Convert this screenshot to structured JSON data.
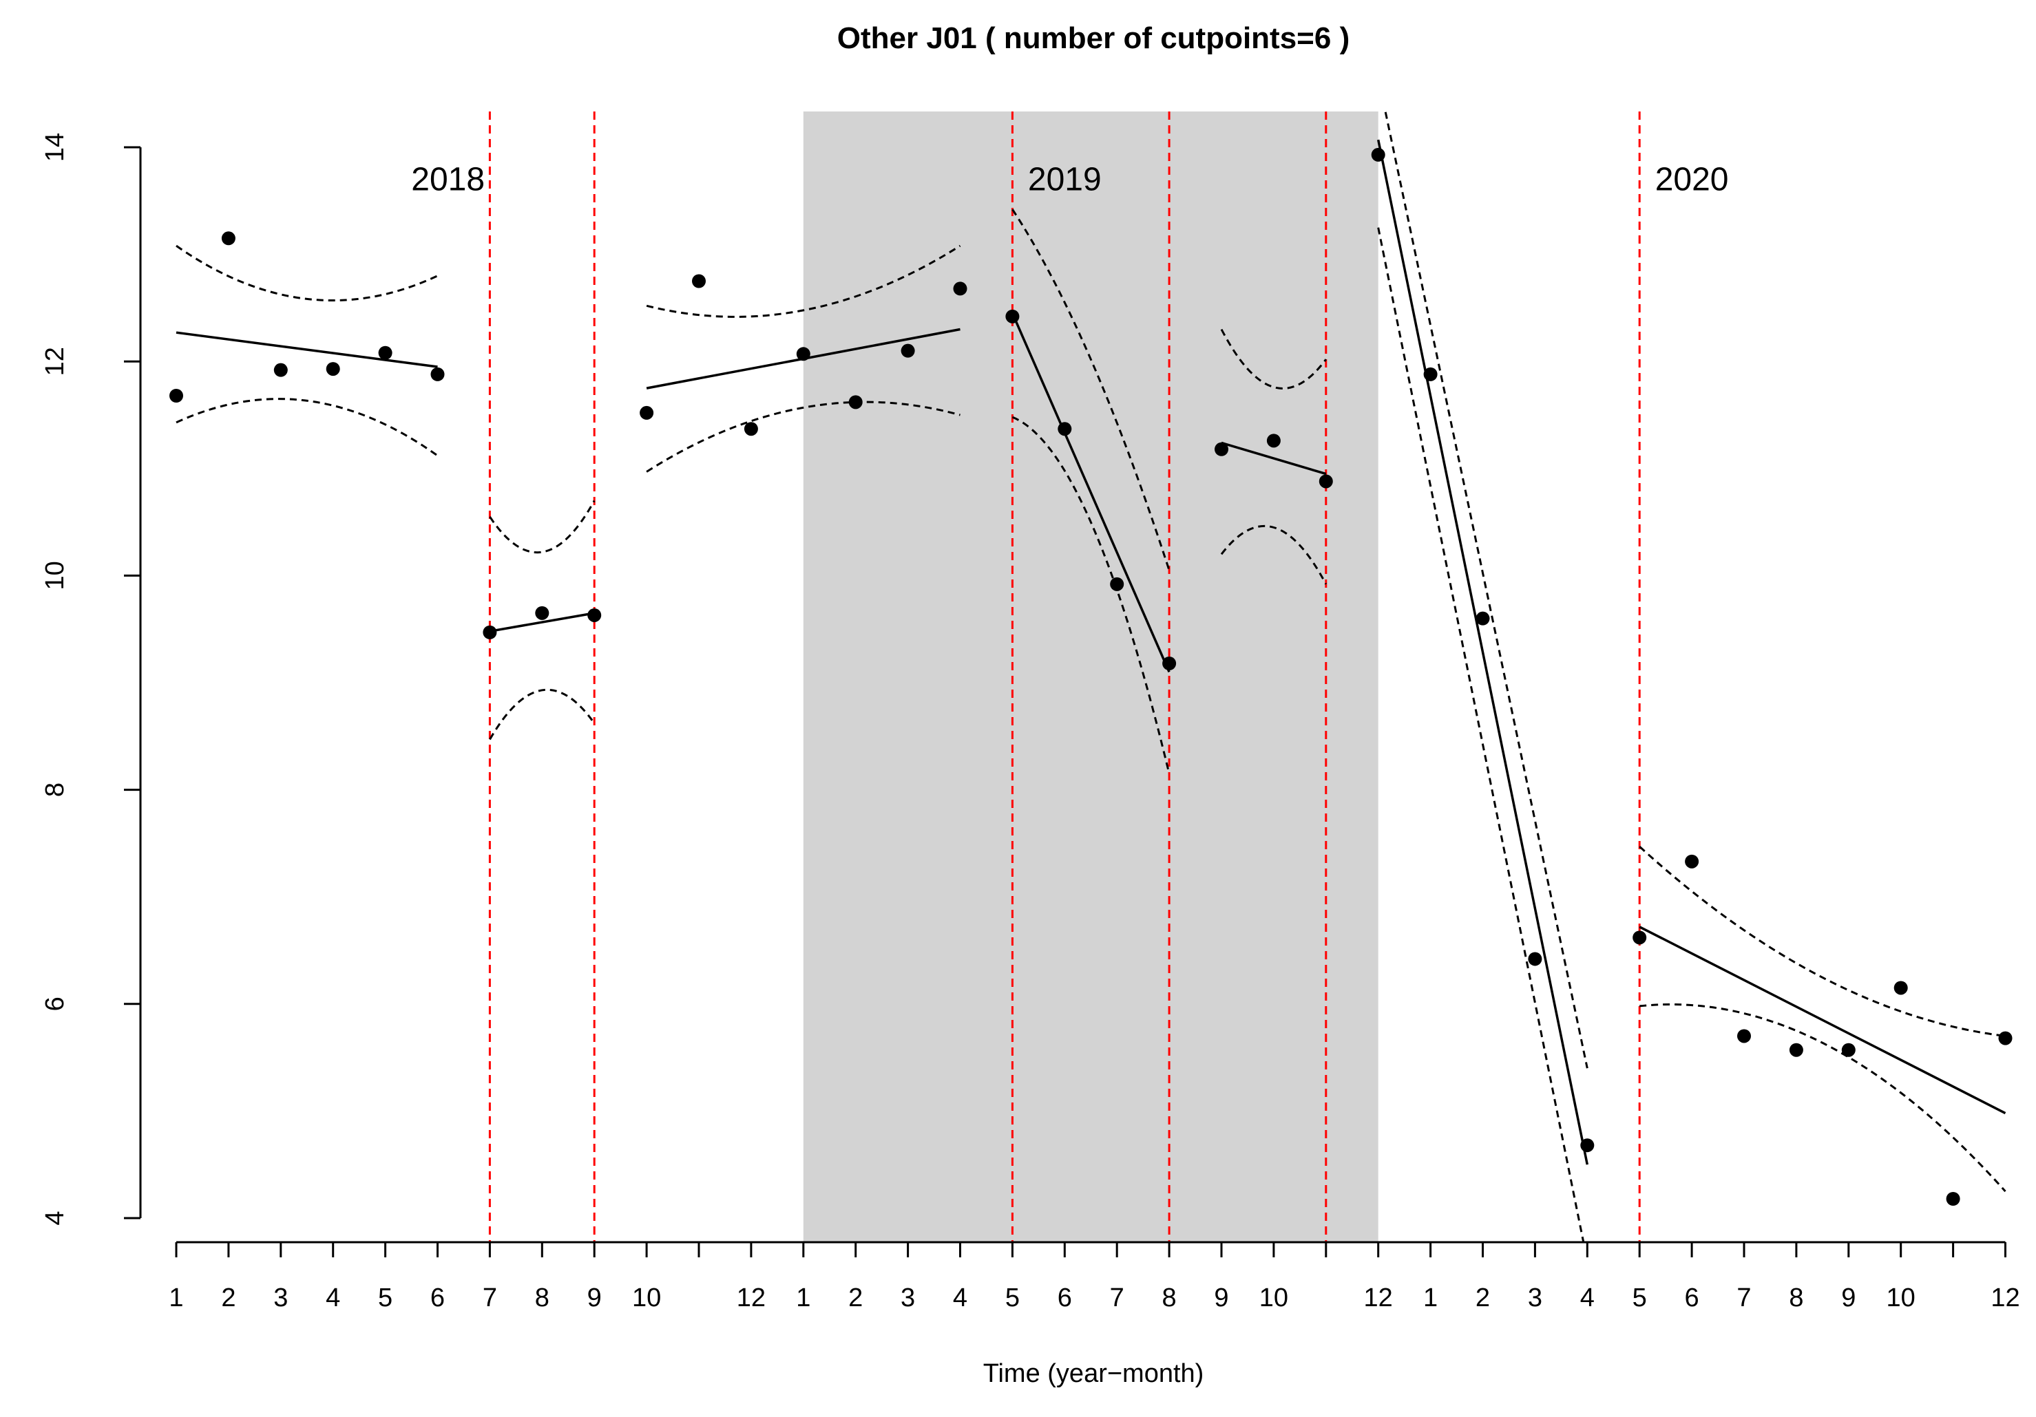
{
  "chart_data": {
    "type": "scatter",
    "title": "Other J01 ( number of cutpoints=6 )",
    "xlabel": "Time (year−month)",
    "ylabel": "",
    "xlim": [
      1,
      36
    ],
    "ylim": [
      4,
      14
    ],
    "y_ticks": [
      4,
      6,
      8,
      10,
      12,
      14
    ],
    "x_ticks": [
      {
        "x": 1,
        "label": "1"
      },
      {
        "x": 2,
        "label": "2"
      },
      {
        "x": 3,
        "label": "3"
      },
      {
        "x": 4,
        "label": "4"
      },
      {
        "x": 5,
        "label": "5"
      },
      {
        "x": 6,
        "label": "6"
      },
      {
        "x": 7,
        "label": "7"
      },
      {
        "x": 8,
        "label": "8"
      },
      {
        "x": 9,
        "label": "9"
      },
      {
        "x": 10,
        "label": "10"
      },
      {
        "x": 11,
        "label": ""
      },
      {
        "x": 12,
        "label": "12"
      },
      {
        "x": 13,
        "label": "1"
      },
      {
        "x": 14,
        "label": "2"
      },
      {
        "x": 15,
        "label": "3"
      },
      {
        "x": 16,
        "label": "4"
      },
      {
        "x": 17,
        "label": "5"
      },
      {
        "x": 18,
        "label": "6"
      },
      {
        "x": 19,
        "label": "7"
      },
      {
        "x": 20,
        "label": "8"
      },
      {
        "x": 21,
        "label": "9"
      },
      {
        "x": 22,
        "label": "10"
      },
      {
        "x": 23,
        "label": ""
      },
      {
        "x": 24,
        "label": "12"
      },
      {
        "x": 25,
        "label": "1"
      },
      {
        "x": 26,
        "label": "2"
      },
      {
        "x": 27,
        "label": "3"
      },
      {
        "x": 28,
        "label": "4"
      },
      {
        "x": 29,
        "label": "5"
      },
      {
        "x": 30,
        "label": "6"
      },
      {
        "x": 31,
        "label": "7"
      },
      {
        "x": 32,
        "label": "8"
      },
      {
        "x": 33,
        "label": "9"
      },
      {
        "x": 34,
        "label": "10"
      },
      {
        "x": 35,
        "label": ""
      },
      {
        "x": 36,
        "label": "12"
      }
    ],
    "year_labels": [
      {
        "label": "2018",
        "x": 6.2,
        "y": 13.7
      },
      {
        "label": "2019",
        "x": 18.0,
        "y": 13.7
      },
      {
        "label": "2020",
        "x": 30.0,
        "y": 13.7
      }
    ],
    "shaded_region": {
      "x_start": 13,
      "x_end": 24,
      "color": "#d3d3d3"
    },
    "cutpoints": [
      7,
      9,
      17,
      20,
      23,
      29
    ],
    "cutpoint_color": "#ff0000",
    "points": [
      {
        "x": 1,
        "y": 11.68
      },
      {
        "x": 2,
        "y": 13.15
      },
      {
        "x": 3,
        "y": 11.92
      },
      {
        "x": 4,
        "y": 11.93
      },
      {
        "x": 5,
        "y": 12.08
      },
      {
        "x": 6,
        "y": 11.88
      },
      {
        "x": 7,
        "y": 9.47
      },
      {
        "x": 8,
        "y": 9.65
      },
      {
        "x": 9,
        "y": 9.63
      },
      {
        "x": 10,
        "y": 11.52
      },
      {
        "x": 11,
        "y": 12.75
      },
      {
        "x": 12,
        "y": 11.37
      },
      {
        "x": 13,
        "y": 12.07
      },
      {
        "x": 14,
        "y": 11.62
      },
      {
        "x": 15,
        "y": 12.1
      },
      {
        "x": 16,
        "y": 12.68
      },
      {
        "x": 17,
        "y": 12.42
      },
      {
        "x": 18,
        "y": 11.37
      },
      {
        "x": 19,
        "y": 9.92
      },
      {
        "x": 20,
        "y": 9.18
      },
      {
        "x": 21,
        "y": 11.18
      },
      {
        "x": 22,
        "y": 11.26
      },
      {
        "x": 23,
        "y": 10.88
      },
      {
        "x": 24,
        "y": 13.93
      },
      {
        "x": 25,
        "y": 11.88
      },
      {
        "x": 26,
        "y": 9.6
      },
      {
        "x": 27,
        "y": 6.42
      },
      {
        "x": 28,
        "y": 4.68
      },
      {
        "x": 29,
        "y": 6.62
      },
      {
        "x": 30,
        "y": 7.33
      },
      {
        "x": 31,
        "y": 5.7
      },
      {
        "x": 32,
        "y": 5.57
      },
      {
        "x": 33,
        "y": 5.57
      },
      {
        "x": 34,
        "y": 6.15
      },
      {
        "x": 35,
        "y": 4.18
      },
      {
        "x": 36,
        "y": 5.68
      }
    ],
    "segments": [
      {
        "x": [
          1,
          6
        ],
        "fit": [
          12.27,
          11.95
        ],
        "upper": [
          [
            1,
            13.08
          ],
          [
            4,
            12.57
          ],
          [
            6,
            12.8
          ]
        ],
        "lower": [
          [
            1,
            11.43
          ],
          [
            3,
            11.65
          ],
          [
            6,
            11.12
          ]
        ]
      },
      {
        "x": [
          7,
          9
        ],
        "fit": [
          9.48,
          9.65
        ],
        "upper": [
          [
            7,
            10.55
          ],
          [
            8,
            10.22
          ],
          [
            9,
            10.7
          ]
        ],
        "lower": [
          [
            7,
            8.47
          ],
          [
            8,
            8.93
          ],
          [
            9,
            8.62
          ]
        ]
      },
      {
        "x": [
          10,
          16
        ],
        "fit": [
          11.75,
          12.3
        ],
        "upper": [
          [
            10,
            12.52
          ],
          [
            12,
            12.42
          ],
          [
            16,
            13.08
          ]
        ],
        "lower": [
          [
            10,
            10.97
          ],
          [
            14,
            11.62
          ],
          [
            16,
            11.5
          ]
        ]
      },
      {
        "x": [
          17,
          20
        ],
        "fit": [
          12.45,
          9.1
        ],
        "upper": [
          [
            17,
            13.42
          ],
          [
            18,
            12.55
          ],
          [
            20,
            10.05
          ]
        ],
        "lower": [
          [
            17,
            11.48
          ],
          [
            18.5,
            10.5
          ],
          [
            20,
            8.15
          ]
        ]
      },
      {
        "x": [
          21,
          23
        ],
        "fit": [
          11.24,
          10.95
        ],
        "upper": [
          [
            21,
            12.3
          ],
          [
            22,
            11.76
          ],
          [
            23,
            12.02
          ]
        ],
        "lower": [
          [
            21,
            10.2
          ],
          [
            22,
            10.45
          ],
          [
            23,
            9.92
          ]
        ]
      },
      {
        "x": [
          24,
          28
        ],
        "fit": [
          14.07,
          4.5
        ],
        "upper": [
          [
            24,
            14.65
          ],
          [
            28,
            5.4
          ]
        ],
        "lower": [
          [
            24,
            13.25
          ],
          [
            28,
            3.6
          ]
        ]
      },
      {
        "x": [
          29,
          36
        ],
        "fit": [
          6.72,
          4.98
        ],
        "upper": [
          [
            29,
            7.47
          ],
          [
            34,
            5.93
          ],
          [
            36,
            5.7
          ]
        ],
        "lower": [
          [
            29,
            5.98
          ],
          [
            32,
            5.75
          ],
          [
            36,
            4.25
          ]
        ]
      }
    ]
  }
}
